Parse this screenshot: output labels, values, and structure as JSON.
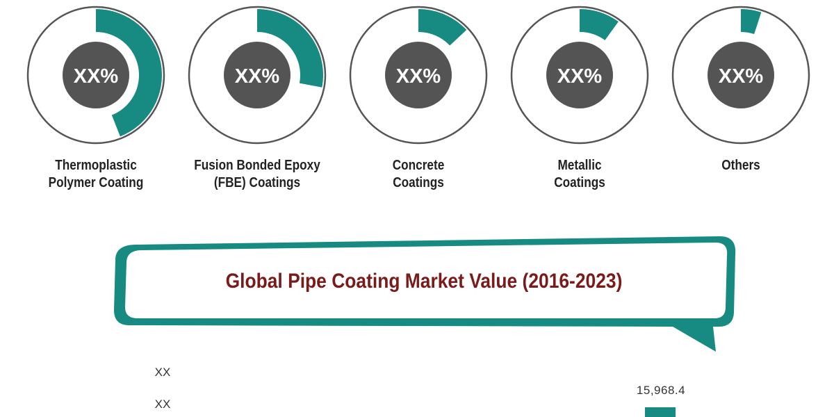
{
  "colors": {
    "accent": "#178a81",
    "dark": "#545454",
    "ring_border": "#555555",
    "title": "#7a1b1b"
  },
  "chart_data": [
    {
      "type": "pie",
      "segments": [
        {
          "label": "Thermoplastic Polymer Coating",
          "label_lines": [
            "Thermoplastic",
            "Polymer Coating"
          ],
          "display_value": "XX%",
          "share": 0.44
        },
        {
          "label": "Fusion Bonded Epoxy (FBE) Coatings",
          "label_lines": [
            "Fusion Bonded Epoxy",
            "(FBE) Coatings"
          ],
          "display_value": "XX%",
          "share": 0.28
        },
        {
          "label": "Concrete Coatings",
          "label_lines": [
            "Concrete",
            "Coatings"
          ],
          "display_value": "XX%",
          "share": 0.13
        },
        {
          "label": "Metallic Coatings",
          "label_lines": [
            "Metallic",
            "Coatings"
          ],
          "display_value": "XX%",
          "share": 0.1
        },
        {
          "label": "Others",
          "label_lines": [
            "Others"
          ],
          "display_value": "XX%",
          "share": 0.05
        }
      ]
    },
    {
      "type": "bar",
      "title": "Global Pipe Coating Market Value (2016-2023)",
      "y_tick_labels": [
        "XX",
        "XX"
      ],
      "bars": [
        {
          "value": 15968.4,
          "label": "15,968.4"
        }
      ]
    }
  ]
}
